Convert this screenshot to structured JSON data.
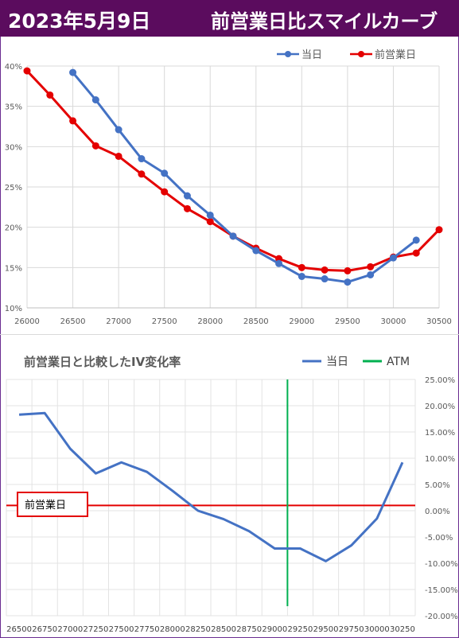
{
  "header": {
    "date": "2023年5月9日",
    "title": "前営業日比スマイルカーブ"
  },
  "colors": {
    "header_bg": "#5b0c5e",
    "today": "#4472c4",
    "prev": "#e40000",
    "atm": "#00b050",
    "line_today2": "#4472c4",
    "zero_line": "#e40000"
  },
  "chart_data": [
    {
      "type": "line",
      "title": "",
      "xlabel": "",
      "ylabel": "",
      "x_ticks": [
        26000,
        26500,
        27000,
        27500,
        28000,
        28500,
        29000,
        29500,
        30000,
        30500
      ],
      "y_ticks": [
        "10%",
        "15%",
        "20%",
        "25%",
        "30%",
        "35%",
        "40%"
      ],
      "xlim": [
        26000,
        30500
      ],
      "ylim": [
        10,
        40
      ],
      "grid": true,
      "legend": "top-right",
      "series": [
        {
          "name": "当日",
          "color": "#4472c4",
          "x": [
            26500,
            26750,
            27000,
            27250,
            27500,
            27750,
            28000,
            28250,
            28500,
            28750,
            29000,
            29250,
            29500,
            29750,
            30000,
            30250
          ],
          "y": [
            39.2,
            35.8,
            32.1,
            28.5,
            26.7,
            23.9,
            21.5,
            18.9,
            17.1,
            15.5,
            13.9,
            13.6,
            13.2,
            14.1,
            16.2,
            18.4
          ]
        },
        {
          "name": "前営業日",
          "color": "#e40000",
          "x": [
            26000,
            26250,
            26500,
            26750,
            27000,
            27250,
            27500,
            27750,
            28000,
            28250,
            28500,
            28750,
            29000,
            29250,
            29500,
            29750,
            30000,
            30250,
            30500
          ],
          "y": [
            39.4,
            36.4,
            33.2,
            30.1,
            28.8,
            26.6,
            24.4,
            22.3,
            20.7,
            18.9,
            17.4,
            16.1,
            15.0,
            14.7,
            14.6,
            15.1,
            16.3,
            16.8,
            19.7
          ]
        }
      ]
    },
    {
      "type": "line",
      "title": "前営業日と比較したIV変化率",
      "xlabel": "",
      "ylabel": "",
      "categories": [
        "26500",
        "26750",
        "27000",
        "27250",
        "27500",
        "27750",
        "28000",
        "28250",
        "28500",
        "28750",
        "29000",
        "29250",
        "29500",
        "29750",
        "30000",
        "30250"
      ],
      "y_ticks": [
        "25.00%",
        "20.00%",
        "15.00%",
        "10.00%",
        "5.00%",
        "0.00%",
        "-5.00%",
        "-10.00%",
        "-15.00%",
        "-20.00%"
      ],
      "ylim": [
        -20,
        25
      ],
      "grid": true,
      "legend": "top-right",
      "series": [
        {
          "name": "当日",
          "color": "#4472c4",
          "values": [
            18.3,
            18.6,
            11.8,
            7.1,
            9.2,
            7.4,
            3.8,
            0.0,
            -1.6,
            -3.9,
            -7.2,
            -7.2,
            -9.6,
            -6.6,
            -1.5,
            9.2
          ]
        },
        {
          "name": "ATM",
          "color": "#00b050",
          "x_at": "29250"
        }
      ],
      "reference_line": {
        "label": "前営業日",
        "value": 1.0,
        "color": "#e40000"
      }
    }
  ]
}
